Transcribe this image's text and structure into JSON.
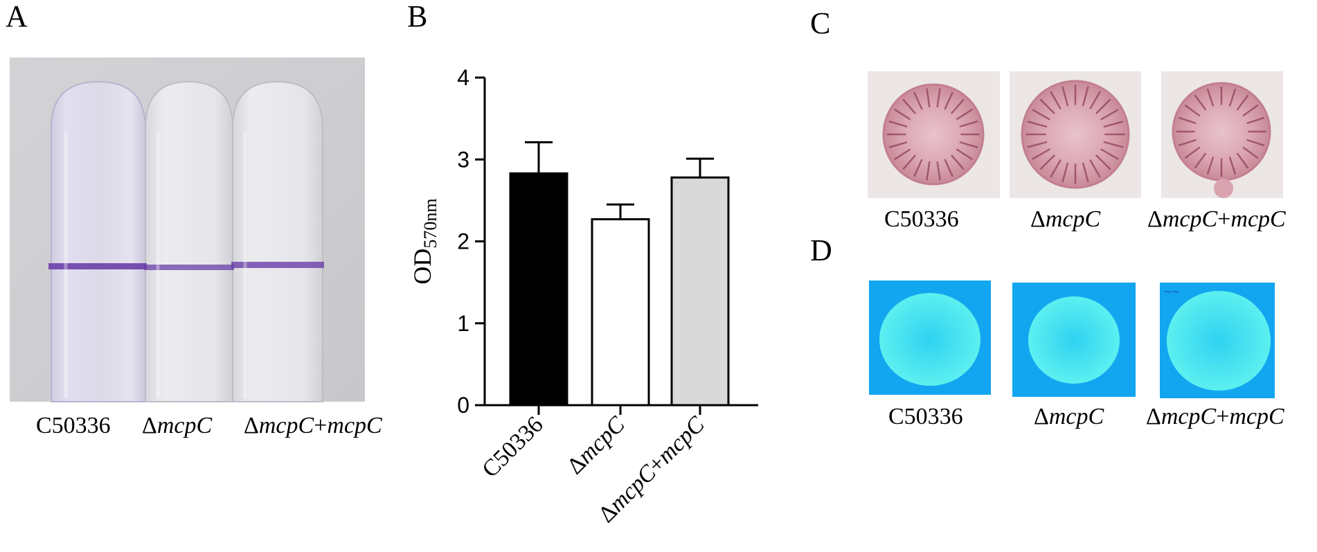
{
  "panels": {
    "a": {
      "letter": "A",
      "captions": [
        {
          "plain": "C50336",
          "italic": "",
          "suffix": ""
        },
        {
          "plain": "Δ",
          "italic": "mcpC",
          "suffix": ""
        },
        {
          "plain": "Δ",
          "italic": "mcpC",
          "suffix": "+",
          "italic2": "mcpC"
        }
      ]
    },
    "b": {
      "letter": "B"
    },
    "c": {
      "letter": "C",
      "captions": [
        {
          "plain": "C50336",
          "italic": "",
          "suffix": ""
        },
        {
          "plain": "Δ",
          "italic": "mcpC",
          "suffix": ""
        },
        {
          "plain": "Δ",
          "italic": "mcpC",
          "suffix": "+",
          "italic2": "mcpC"
        }
      ]
    },
    "d": {
      "letter": "D",
      "captions": [
        {
          "plain": "C50336",
          "italic": "",
          "suffix": ""
        },
        {
          "plain": "Δ",
          "italic": "mcpC",
          "suffix": ""
        },
        {
          "plain": "Δ",
          "italic": "mcpC",
          "suffix": "+",
          "italic2": "mcpC"
        }
      ]
    }
  },
  "colors": {
    "tube_stain": "#6a3fa8",
    "colony_congo": "#c98a98",
    "plate_bg_c": "#ece6e6",
    "plate_bg_d": "#12a6f0",
    "colony_calcofluor": "#4fe6f0"
  },
  "chart_data": {
    "type": "bar",
    "categories": [
      "C50336",
      "ΔmcpC",
      "ΔmcpC+mcpC"
    ],
    "category_labels": [
      {
        "plain": "C50336",
        "italic": ""
      },
      {
        "plain": "Δ",
        "italic": "mcpC"
      },
      {
        "plain": "Δ",
        "italic": "mcpC",
        "suffix": "+",
        "italic2": "mcpC"
      }
    ],
    "values": [
      2.83,
      2.27,
      2.78
    ],
    "errors": [
      0.38,
      0.18,
      0.23
    ],
    "bar_colors": [
      "#000000",
      "#ffffff",
      "#d9d9d9"
    ],
    "ylabel_main": "OD",
    "ylabel_sub": "570nm",
    "ylim": [
      0,
      4
    ],
    "yticks": [
      "0",
      "1",
      "2",
      "3",
      "4"
    ],
    "grid": false,
    "legend": "none"
  }
}
